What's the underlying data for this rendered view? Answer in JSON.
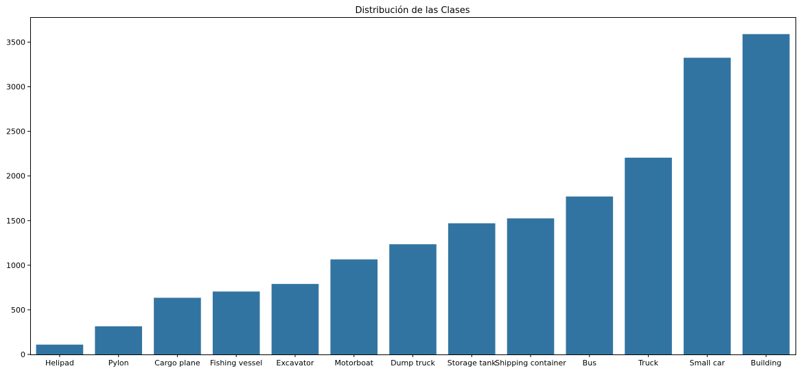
{
  "chart_data": {
    "type": "bar",
    "title": "Distribución de las Clases",
    "xlabel": "",
    "ylabel": "",
    "categories": [
      "Helipad",
      "Pylon",
      "Cargo plane",
      "Fishing vessel",
      "Excavator",
      "Motorboat",
      "Dump truck",
      "Storage tank",
      "Shipping container",
      "Bus",
      "Truck",
      "Small car",
      "Building"
    ],
    "values": [
      110,
      315,
      635,
      705,
      790,
      1065,
      1235,
      1470,
      1525,
      1770,
      2205,
      3325,
      3590
    ],
    "ylim": [
      0,
      3780
    ],
    "yticks": [
      0,
      500,
      1000,
      1500,
      2000,
      2500,
      3000,
      3500
    ],
    "bar_color": "#3274a1",
    "grid": false
  }
}
